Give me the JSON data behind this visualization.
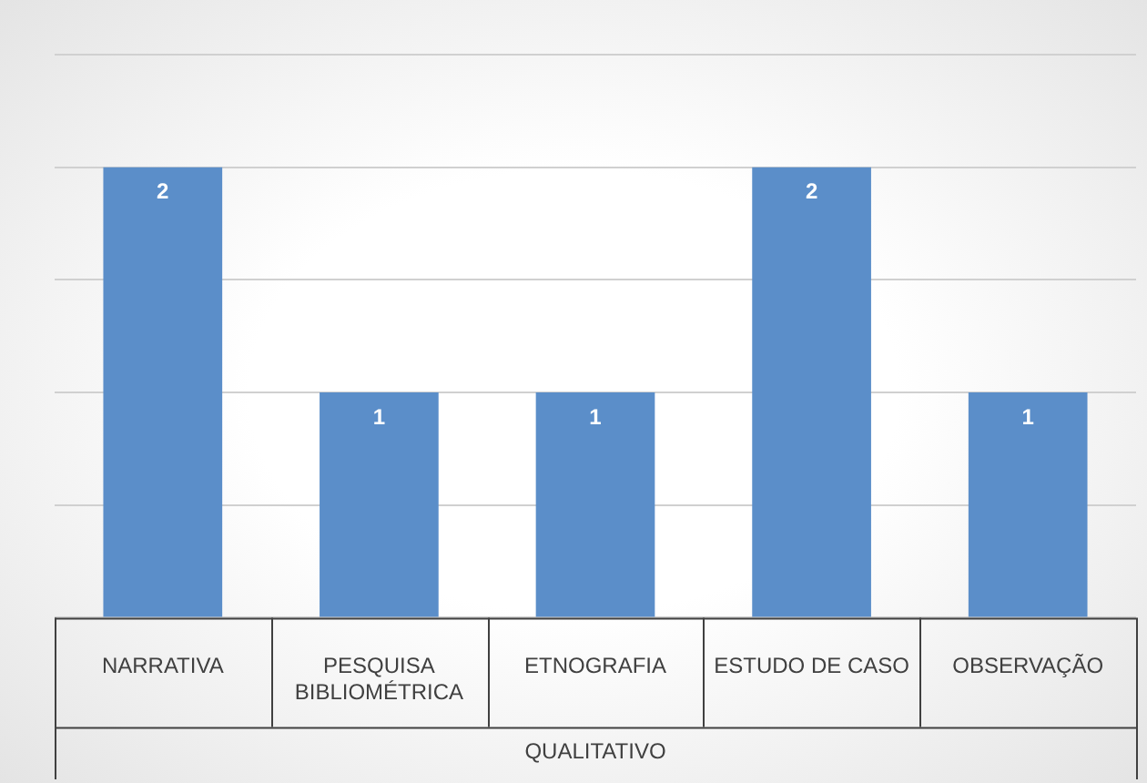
{
  "chart_data": {
    "type": "bar",
    "categories": [
      "NARRATIVA",
      "PESQUISA BIBLIOMÉTRICA",
      "ETNOGRAFIA",
      "ESTUDO DE CASO",
      "OBSERVAÇÃO"
    ],
    "values": [
      2,
      1,
      1,
      2,
      1
    ],
    "color": "#5b8ec9",
    "xlabel": "QUALITATIVO",
    "ylim": [
      0,
      2.5
    ],
    "yticks": [
      {
        "value": 0,
        "label": null
      },
      {
        "value": 0.5,
        "label": null
      },
      {
        "value": 1,
        "label": null
      },
      {
        "value": 1.5,
        "label": null
      },
      {
        "value": 2,
        "label": null
      },
      {
        "value": 2.5,
        "label": null
      }
    ],
    "grid": "y",
    "tick_labels": "x",
    "data_labels": true,
    "legend": false
  }
}
